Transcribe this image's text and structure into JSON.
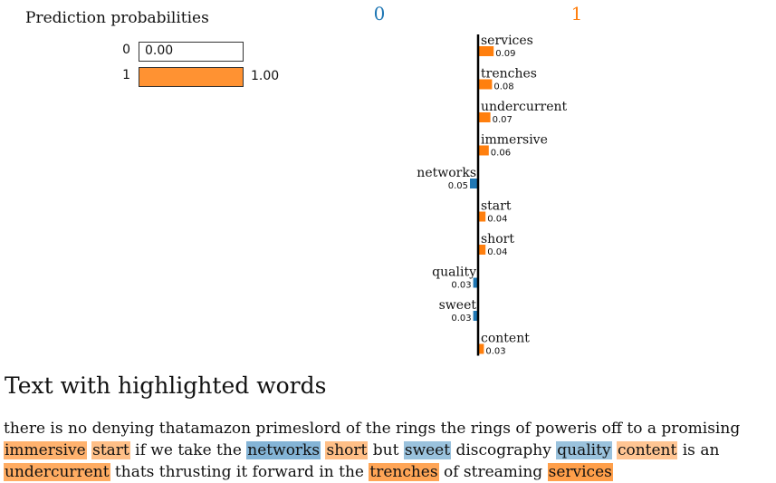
{
  "prediction_probabilities": {
    "title": "Prediction probabilities",
    "rows": [
      {
        "label": "0",
        "value": 0.0,
        "display": "0.00",
        "color": "#ffffff"
      },
      {
        "label": "1",
        "value": 1.0,
        "display": "1.00",
        "color": "#ff7f0e"
      }
    ]
  },
  "chart_data": {
    "type": "bar",
    "orientation": "horizontal-diverging",
    "class_labels": [
      {
        "label": "0",
        "color": "#1f77b4"
      },
      {
        "label": "1",
        "color": "#ff7f0e"
      }
    ],
    "categories": [
      "services",
      "trenches",
      "undercurrent",
      "immersive",
      "networks",
      "start",
      "short",
      "quality",
      "sweet",
      "content"
    ],
    "values": [
      0.09,
      0.08,
      0.07,
      0.06,
      -0.05,
      0.04,
      0.04,
      -0.03,
      -0.03,
      0.03
    ],
    "value_labels": [
      "0.09",
      "0.08",
      "0.07",
      "0.06",
      "0.05",
      "0.04",
      "0.04",
      "0.03",
      "0.03",
      "0.03"
    ],
    "colors": {
      "positive": "#ff7f0e",
      "negative": "#1f77b4"
    }
  },
  "text_section": {
    "title": "Text with highlighted words",
    "segments": [
      {
        "text": "there is no denying thatamazon primeslord of the rings   the rings of poweris off to a promising ",
        "weight": 0
      },
      {
        "text": "immersive",
        "weight": 0.06
      },
      {
        "text": " ",
        "weight": 0
      },
      {
        "text": "start",
        "weight": 0.04
      },
      {
        "text": " if we take the ",
        "weight": 0
      },
      {
        "text": "networks",
        "weight": -0.05
      },
      {
        "text": " ",
        "weight": 0
      },
      {
        "text": "short",
        "weight": 0.04
      },
      {
        "text": " but ",
        "weight": 0
      },
      {
        "text": "sweet",
        "weight": -0.03
      },
      {
        "text": " discography ",
        "weight": 0
      },
      {
        "text": "quality",
        "weight": -0.03
      },
      {
        "text": " ",
        "weight": 0
      },
      {
        "text": "content",
        "weight": 0.03
      },
      {
        "text": " is an ",
        "weight": 0
      },
      {
        "text": "undercurrent",
        "weight": 0.07
      },
      {
        "text": " thats thrusting it forward in the ",
        "weight": 0
      },
      {
        "text": "trenches",
        "weight": 0.08
      },
      {
        "text": " of streaming ",
        "weight": 0
      },
      {
        "text": "services",
        "weight": 0.09
      }
    ]
  }
}
